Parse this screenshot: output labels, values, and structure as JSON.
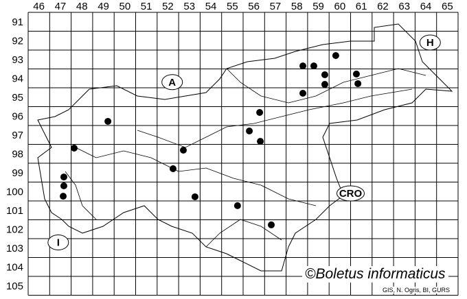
{
  "map": {
    "columns": [
      "46",
      "47",
      "48",
      "49",
      "50",
      "51",
      "52",
      "53",
      "54",
      "55",
      "56",
      "57",
      "58",
      "59",
      "60",
      "61",
      "62",
      "63",
      "64",
      "65"
    ],
    "rows": [
      "91",
      "92",
      "93",
      "94",
      "95",
      "96",
      "97",
      "98",
      "99",
      "100",
      "101",
      "102",
      "103",
      "104",
      "105"
    ],
    "regions": [
      {
        "label": "A",
        "col": 52.7,
        "row": 94.7
      },
      {
        "label": "H",
        "col": 64.7,
        "row": 92.6
      },
      {
        "label": "CRO",
        "col": 61.0,
        "row": 100.6
      },
      {
        "label": "I",
        "col": 47.4,
        "row": 103.2
      }
    ],
    "records": [
      {
        "col": 60.31,
        "row": 93.29
      },
      {
        "col": 58.78,
        "row": 93.84
      },
      {
        "col": 59.29,
        "row": 93.84
      },
      {
        "col": 59.8,
        "row": 94.31
      },
      {
        "col": 61.27,
        "row": 94.27
      },
      {
        "col": 59.8,
        "row": 94.82
      },
      {
        "col": 61.34,
        "row": 94.78
      },
      {
        "col": 58.78,
        "row": 95.29
      },
      {
        "col": 56.77,
        "row": 96.31
      },
      {
        "col": 49.71,
        "row": 96.78
      },
      {
        "col": 56.29,
        "row": 97.29
      },
      {
        "col": 56.8,
        "row": 97.84
      },
      {
        "col": 48.14,
        "row": 98.2
      },
      {
        "col": 53.22,
        "row": 98.31
      },
      {
        "col": 52.74,
        "row": 99.29
      },
      {
        "col": 47.66,
        "row": 99.73
      },
      {
        "col": 47.66,
        "row": 100.2
      },
      {
        "col": 47.63,
        "row": 100.75
      },
      {
        "col": 53.76,
        "row": 100.78
      },
      {
        "col": 55.74,
        "row": 101.25
      },
      {
        "col": 57.31,
        "row": 102.27
      }
    ],
    "dot_color": "#000000"
  },
  "copyright": "©Boletus informaticus",
  "credit": "GIS, N. Ogris, BI, GURS"
}
